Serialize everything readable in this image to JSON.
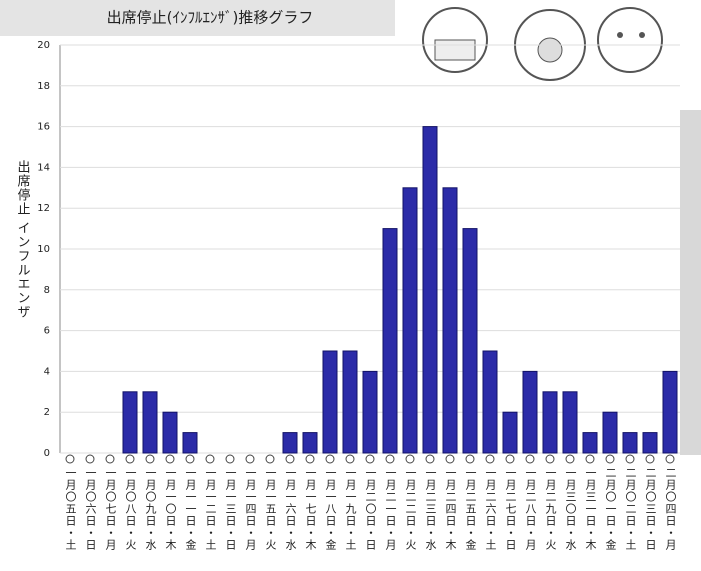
{
  "chart_data": {
    "type": "bar",
    "title": "出席停止(ｲﾝﾌﾙｴﾝｻﾞ)推移グラフ",
    "y_label": "出席停止 インフルエンザ",
    "categories": [
      "一月〇五日・土",
      "一月〇六日・日",
      "一月〇七日・月",
      "一月〇八日・火",
      "一月〇九日・水",
      "一月一〇日・木",
      "一月一一日・金",
      "一月一二日・土",
      "一月一三日・日",
      "一月一四日・月",
      "一月一五日・火",
      "一月一六日・水",
      "一月一七日・木",
      "一月一八日・金",
      "一月一九日・土",
      "一月二〇日・日",
      "一月二一日・月",
      "一月二二日・火",
      "一月二三日・水",
      "一月二四日・木",
      "一月二五日・金",
      "一月二六日・土",
      "一月二七日・日",
      "一月二八日・月",
      "一月二九日・火",
      "一月三〇日・水",
      "一月三一日・木",
      "二月〇一日・金",
      "二月〇二日・土",
      "二月〇三日・日",
      "二月〇四日・月"
    ],
    "values": [
      0,
      0,
      0,
      3,
      3,
      2,
      1,
      0,
      0,
      0,
      0,
      1,
      1,
      5,
      5,
      4,
      11,
      13,
      16,
      13,
      11,
      5,
      2,
      4,
      3,
      3,
      1,
      2,
      1,
      1,
      4
    ],
    "color": "#2b2ba8",
    "ylim": [
      0,
      20
    ],
    "yticks": [
      0,
      2,
      4,
      6,
      8,
      10,
      12,
      14,
      16,
      18,
      20
    ],
    "grid": true
  }
}
